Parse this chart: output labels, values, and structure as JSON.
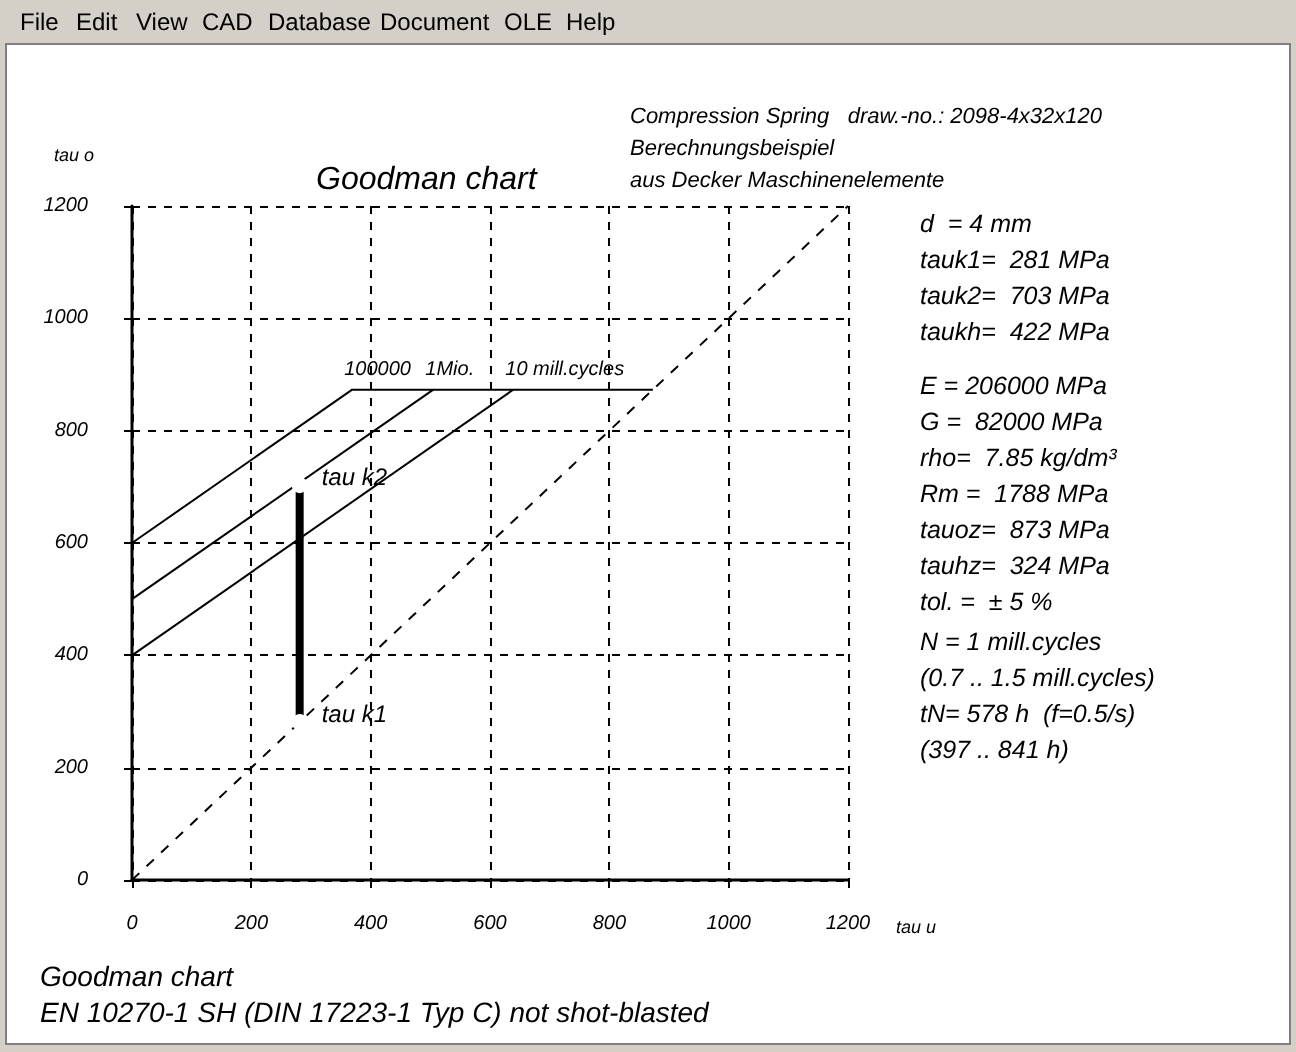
{
  "chart_data": {
    "type": "line",
    "title": "Goodman chart",
    "xlabel": "tau u",
    "ylabel": "tau o",
    "xlim": [
      0,
      1200
    ],
    "ylim": [
      0,
      1200
    ],
    "xticks": [
      0,
      200,
      400,
      600,
      800,
      1000,
      1200
    ],
    "yticks": [
      0,
      200,
      400,
      600,
      800,
      1000,
      1200
    ],
    "grid": true,
    "legend": false,
    "series": [
      {
        "name": "100000",
        "color": "#000000",
        "x": [
          0,
          369,
          873
        ],
        "values": [
          600,
          873,
          873
        ]
      },
      {
        "name": "1Mio.",
        "color": "#000000",
        "x": [
          0,
          505
        ],
        "values": [
          500,
          873
        ]
      },
      {
        "name": "10 mill.cycles",
        "color": "#000000",
        "x": [
          0,
          639
        ],
        "values": [
          400,
          873
        ]
      },
      {
        "color": "#000000",
        "x": [
          0,
          1200
        ],
        "values": [
          0,
          1200
        ],
        "line_style": "dashed"
      },
      {
        "color": "#000000",
        "x": [
          281,
          281
        ],
        "values": [
          281,
          703
        ],
        "marker": "circle"
      }
    ],
    "annotations": [
      "File",
      "Edit",
      "View",
      "CAD",
      "Database",
      "Document",
      "OLE",
      "Help",
      "Compression Spring   draw.-no.: 2098-4x32x120",
      "Berechnungsbeispiel",
      "aus Decker Maschinenelemente",
      "d  = 4 mm\ntauk1=  281 MPa\ntauk2=  703 MPa\ntaukh=  422 MPa",
      "E = 206000 MPa\nG =  82000 MPa\nrho=  7.85 kg/dm³\nRm =  1788 MPa\ntauoz=  873 MPa\ntauhz=  324 MPa\ntol. =  ± 5 %",
      "N = 1 mill.cycles\n(0.7 .. 1.5 mill.cycles)\ntN= 578 h  (f=0.5/s)\n(397 .. 841 h)",
      "Goodman chart",
      "EN 10270-1 SH (DIN 17223-1 Typ C) not shot-blasted",
      {
        "text": "tau k1",
        "x": 281,
        "y": 281
      },
      {
        "text": "tau k2",
        "x": 281,
        "y": 703
      }
    ]
  }
}
